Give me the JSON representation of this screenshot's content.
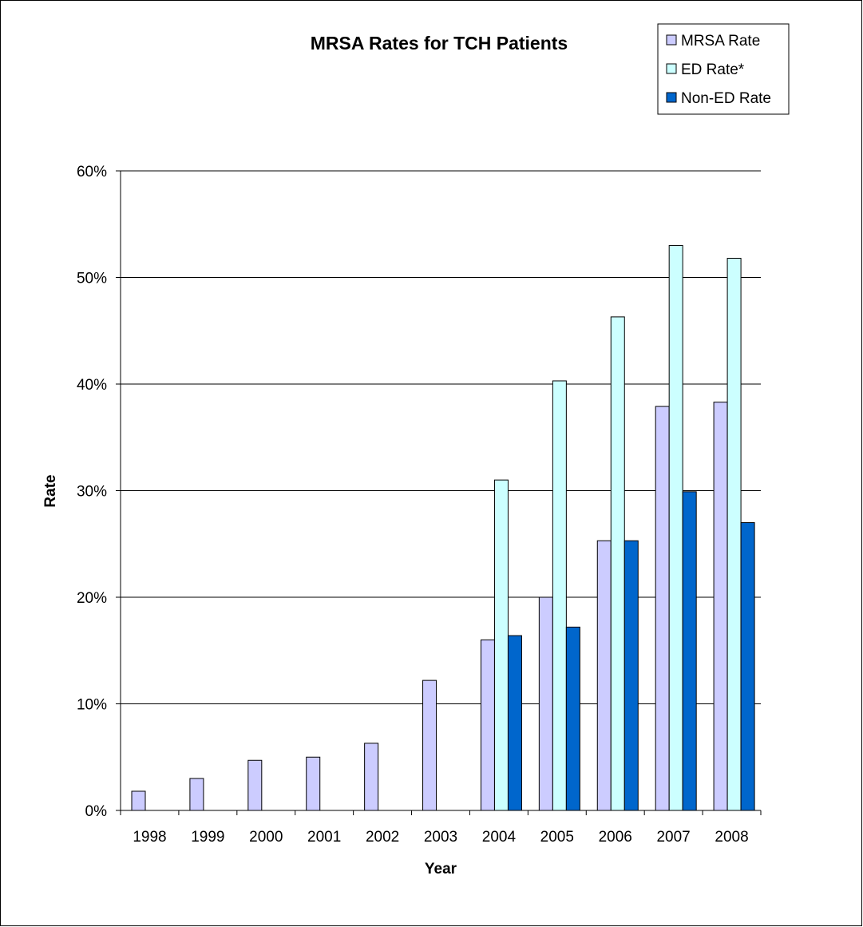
{
  "chart_data": {
    "type": "bar",
    "title": "MRSA Rates for TCH Patients",
    "xlabel": "Year",
    "ylabel": "Rate",
    "ylim": [
      0,
      0.6
    ],
    "y_ticks": [
      {
        "value": 0,
        "label": "0%"
      },
      {
        "value": 0.1,
        "label": "10%"
      },
      {
        "value": 0.2,
        "label": "20%"
      },
      {
        "value": 0.3,
        "label": "30%"
      },
      {
        "value": 0.4,
        "label": "40%"
      },
      {
        "value": 0.5,
        "label": "50%"
      },
      {
        "value": 0.6,
        "label": "60%"
      }
    ],
    "grid": true,
    "legend_position": "top-right",
    "categories": [
      "1998",
      "1999",
      "2000",
      "2001",
      "2002",
      "2003",
      "2004",
      "2005",
      "2006",
      "2007",
      "2008"
    ],
    "series": [
      {
        "name": "MRSA Rate",
        "color": "#ccccff",
        "values": [
          0.018,
          0.03,
          0.047,
          0.05,
          0.063,
          0.122,
          0.16,
          0.2,
          0.253,
          0.379,
          0.383
        ]
      },
      {
        "name": "ED Rate*",
        "color": "#ccffff",
        "values": [
          null,
          null,
          null,
          null,
          null,
          null,
          0.31,
          0.403,
          0.463,
          0.53,
          0.518
        ]
      },
      {
        "name": "Non-ED Rate",
        "color": "#0066cc",
        "values": [
          null,
          null,
          null,
          null,
          null,
          null,
          0.164,
          0.172,
          0.253,
          0.299,
          0.27
        ]
      }
    ]
  }
}
